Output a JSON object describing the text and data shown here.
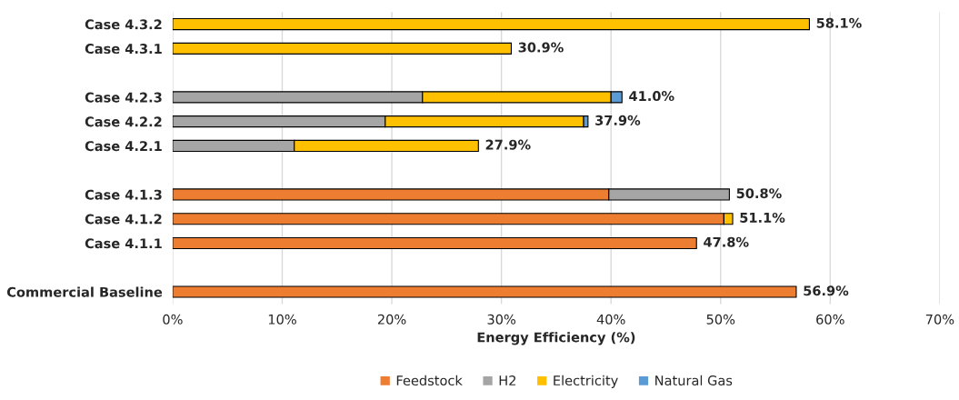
{
  "chart_data": {
    "type": "bar",
    "orientation": "horizontal",
    "stacked": true,
    "xlabel": "Energy Efficiency (%)",
    "categories": [
      "Case 4.3.2",
      "Case 4.3.1",
      null,
      "Case 4.2.3",
      "Case 4.2.2",
      "Case 4.2.1",
      null,
      "Case 4.1.3",
      "Case 4.1.2",
      "Case 4.1.1",
      null,
      "Commercial Baseline"
    ],
    "series": [
      {
        "name": "Feedstock",
        "color": "#ed7d31",
        "values": [
          null,
          null,
          null,
          null,
          null,
          null,
          null,
          39.8,
          50.3,
          47.8,
          null,
          56.9
        ]
      },
      {
        "name": "H2",
        "color": "#a5a5a5",
        "values": [
          null,
          null,
          null,
          22.8,
          19.4,
          11.1,
          null,
          11.0,
          null,
          null,
          null,
          null
        ]
      },
      {
        "name": "Electricity",
        "color": "#ffc000",
        "values": [
          58.1,
          30.9,
          null,
          17.2,
          18.1,
          16.8,
          null,
          null,
          0.8,
          null,
          null,
          null
        ]
      },
      {
        "name": "Natural Gas",
        "color": "#5b9bd5",
        "values": [
          null,
          null,
          null,
          1.0,
          0.4,
          null,
          null,
          null,
          null,
          null,
          null,
          null
        ]
      }
    ],
    "totals": [
      "58.1%",
      "30.9%",
      null,
      "41.0%",
      "37.9%",
      "27.9%",
      null,
      "50.8%",
      "51.1%",
      "47.8%",
      null,
      "56.9%"
    ],
    "xlim": [
      0,
      70
    ],
    "xticks": [
      {
        "value": 0,
        "label": "0%"
      },
      {
        "value": 10,
        "label": "10%"
      },
      {
        "value": 20,
        "label": "20%"
      },
      {
        "value": 30,
        "label": "30%"
      },
      {
        "value": 40,
        "label": "40%"
      },
      {
        "value": 50,
        "label": "50%"
      },
      {
        "value": 60,
        "label": "60%"
      },
      {
        "value": 70,
        "label": "70%"
      }
    ],
    "grid": "x",
    "legend": "bottom"
  }
}
